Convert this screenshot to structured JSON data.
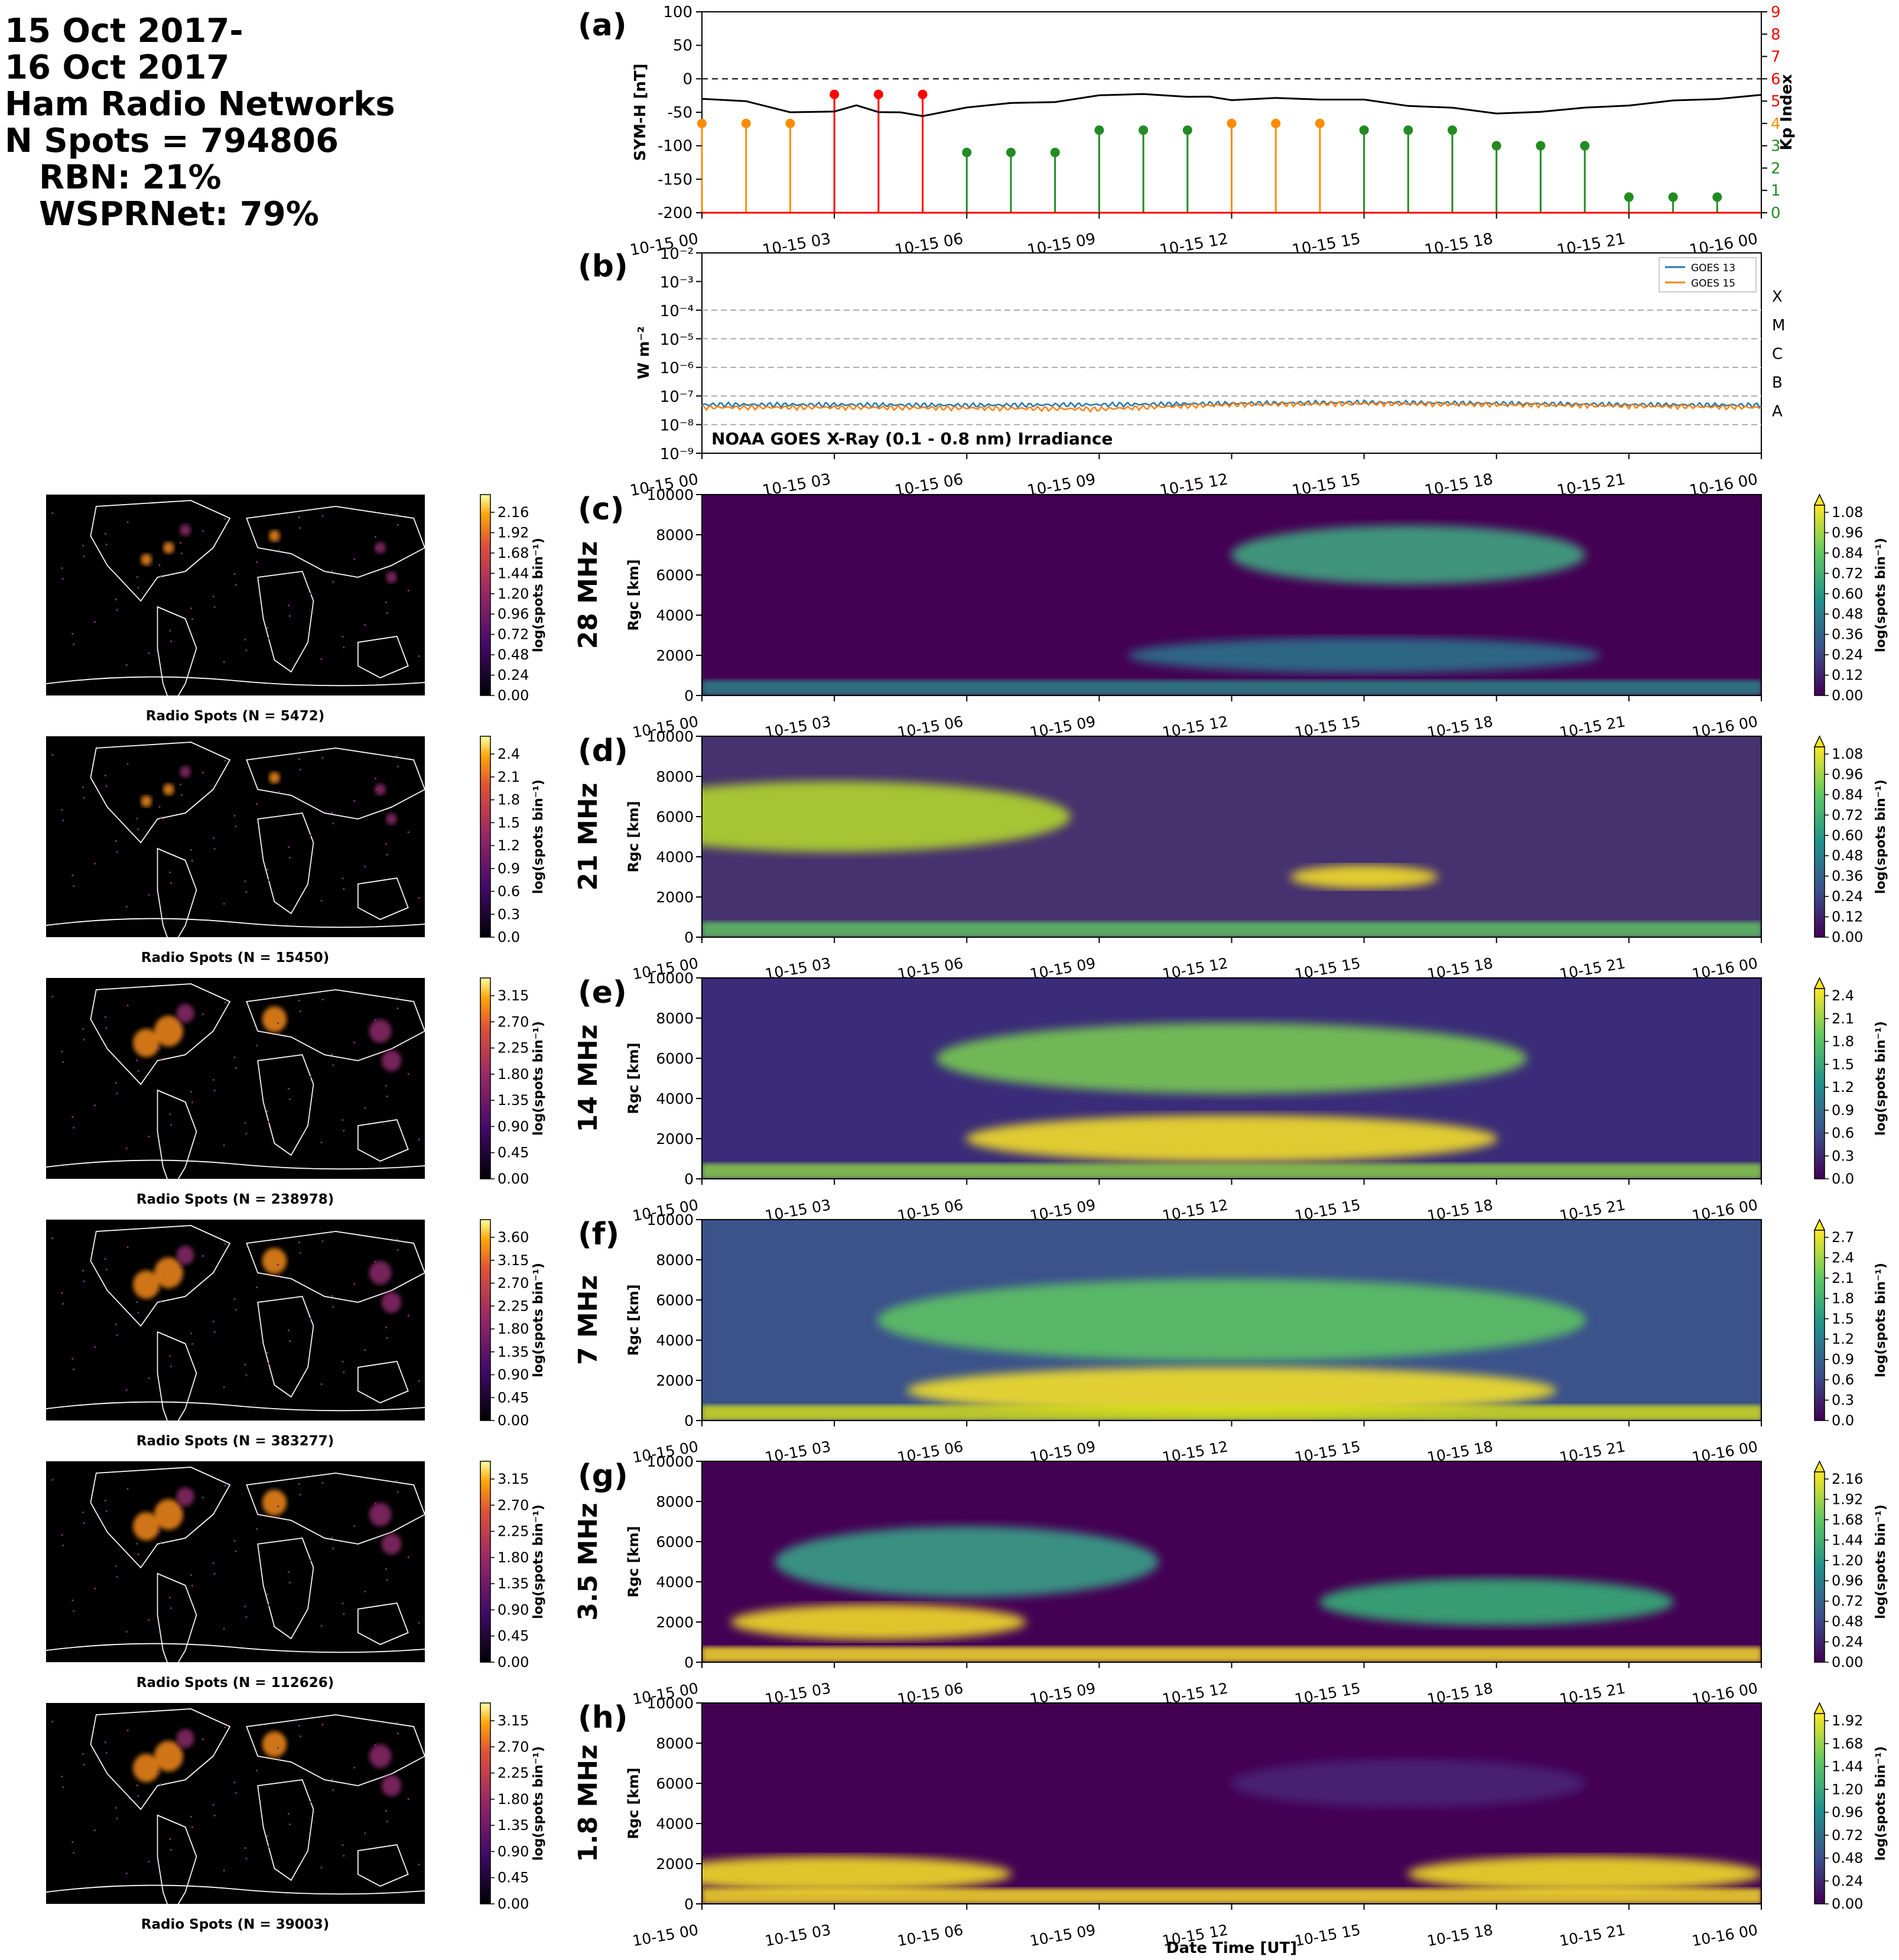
{
  "header": {
    "lines": [
      "15 Oct 2017-",
      "16 Oct 2017",
      "Ham Radio Networks",
      "N Spots = 794806"
    ],
    "networks": [
      "RBN: 21%",
      "WSPRNet: 79%"
    ]
  },
  "colors": {
    "symh_line": "#000000",
    "kp_quiet": "#228b22",
    "kp_active": "#ff8c00",
    "kp_storm": "#ff0000",
    "goes13": "#1f77b4",
    "goes15": "#ff7f0e",
    "map_background": "#000000",
    "coastline": "#ffffff"
  },
  "time_ticks": [
    "10-15 00",
    "10-15 03",
    "10-15 06",
    "10-15 09",
    "10-15 12",
    "10-15 15",
    "10-15 18",
    "10-15 21",
    "10-16 00"
  ],
  "panel_a": {
    "label": "(a)",
    "ylabel": "SYM-H [nT]",
    "y2label": "Kp Index",
    "yticks": [
      "100",
      "50",
      "0",
      "-50",
      "-100",
      "-150",
      "-200"
    ],
    "y2ticks": [
      "9",
      "8",
      "7",
      "6",
      "5",
      "4",
      "3",
      "2",
      "1",
      "0"
    ]
  },
  "panel_b": {
    "label": "(b)",
    "ylabel": "W m⁻²",
    "yticks": [
      "10⁻²",
      "10⁻³",
      "10⁻⁴",
      "10⁻⁵",
      "10⁻⁶",
      "10⁻⁷",
      "10⁻⁸",
      "10⁻⁹"
    ],
    "classes": [
      "X",
      "M",
      "C",
      "B",
      "A"
    ],
    "legend": [
      "GOES 13",
      "GOES 15"
    ],
    "annotation": "NOAA GOES X-Ray (0.1 - 0.8 nm) Irradiance"
  },
  "band_panels": [
    {
      "label": "(c)",
      "band": "28 MHz",
      "map_caption": "Radio Spots (N = 5472)",
      "map_ticks": [
        "2.16",
        "1.92",
        "1.68",
        "1.44",
        "1.20",
        "0.96",
        "0.72",
        "0.48",
        "0.24",
        "0.00"
      ],
      "rti_ticks": [
        "1.08",
        "0.96",
        "0.84",
        "0.72",
        "0.60",
        "0.48",
        "0.36",
        "0.24",
        "0.12",
        "0.00"
      ]
    },
    {
      "label": "(d)",
      "band": "21 MHz",
      "map_caption": "Radio Spots (N = 15450)",
      "map_ticks": [
        "2.4",
        "2.1",
        "1.8",
        "1.5",
        "1.2",
        "0.9",
        "0.6",
        "0.3",
        "0.0"
      ],
      "rti_ticks": [
        "1.08",
        "0.96",
        "0.84",
        "0.72",
        "0.60",
        "0.48",
        "0.36",
        "0.24",
        "0.12",
        "0.00"
      ]
    },
    {
      "label": "(e)",
      "band": "14 MHz",
      "map_caption": "Radio Spots (N = 238978)",
      "map_ticks": [
        "3.15",
        "2.70",
        "2.25",
        "1.80",
        "1.35",
        "0.90",
        "0.45",
        "0.00"
      ],
      "rti_ticks": [
        "2.4",
        "2.1",
        "1.8",
        "1.5",
        "1.2",
        "0.9",
        "0.6",
        "0.3",
        "0.0"
      ]
    },
    {
      "label": "(f)",
      "band": "7 MHz",
      "map_caption": "Radio Spots (N = 383277)",
      "map_ticks": [
        "3.60",
        "3.15",
        "2.70",
        "2.25",
        "1.80",
        "1.35",
        "0.90",
        "0.45",
        "0.00"
      ],
      "rti_ticks": [
        "2.7",
        "2.4",
        "2.1",
        "1.8",
        "1.5",
        "1.2",
        "0.9",
        "0.6",
        "0.3",
        "0.0"
      ]
    },
    {
      "label": "(g)",
      "band": "3.5 MHz",
      "map_caption": "Radio Spots (N = 112626)",
      "map_ticks": [
        "3.15",
        "2.70",
        "2.25",
        "1.80",
        "1.35",
        "0.90",
        "0.45",
        "0.00"
      ],
      "rti_ticks": [
        "2.16",
        "1.92",
        "1.68",
        "1.44",
        "1.20",
        "0.96",
        "0.72",
        "0.48",
        "0.24",
        "0.00"
      ]
    },
    {
      "label": "(h)",
      "band": "1.8 MHz",
      "map_caption": "Radio Spots (N = 39003)",
      "map_ticks": [
        "3.15",
        "2.70",
        "2.25",
        "1.80",
        "1.35",
        "0.90",
        "0.45",
        "0.00"
      ],
      "rti_ticks": [
        "1.92",
        "1.68",
        "1.44",
        "1.20",
        "0.96",
        "0.72",
        "0.48",
        "0.24",
        "0.00"
      ]
    }
  ],
  "rti_axis": {
    "ylabel": "Rgc [km]",
    "yticks": [
      "10000",
      "8000",
      "6000",
      "4000",
      "2000",
      "0"
    ],
    "cbar_label": "log(spots bin⁻¹)"
  },
  "xlabel": "Date Time [UT]",
  "chart_data": [
    {
      "type": "line",
      "title": "",
      "ylabel": "SYM-H [nT]",
      "ylim": [
        -200,
        100
      ],
      "x_hours": [
        0,
        1,
        2,
        3,
        3.5,
        4,
        4.5,
        5,
        6,
        7,
        8,
        9,
        10,
        11,
        11.5,
        12,
        13,
        14,
        15,
        16,
        17,
        18,
        19,
        20,
        21,
        22,
        23,
        24
      ],
      "symh": [
        -30,
        -35,
        -48,
        -50,
        -40,
        -48,
        -52,
        -55,
        -42,
        -38,
        -33,
        -25,
        -24,
        -25,
        -28,
        -32,
        -27,
        -33,
        -30,
        -40,
        -45,
        -50,
        -50,
        -44,
        -38,
        -34,
        -30,
        -24
      ],
      "kp_series": {
        "name": "Kp Index",
        "ylim": [
          0,
          9
        ],
        "x_hours": [
          0,
          1,
          2,
          3,
          4,
          5,
          6,
          7,
          8,
          9,
          10,
          11,
          12,
          13,
          14,
          15,
          16,
          17,
          18,
          19,
          20,
          21,
          22,
          23
        ],
        "values": [
          4.0,
          4.0,
          4.0,
          5.3,
          5.3,
          5.3,
          2.7,
          2.7,
          2.7,
          3.7,
          3.7,
          3.7,
          4.0,
          4.0,
          4.0,
          3.7,
          3.7,
          3.7,
          3.0,
          3.0,
          3.0,
          0.7,
          0.7,
          0.7
        ]
      }
    },
    {
      "type": "line",
      "title": "NOAA GOES X-Ray (0.1 - 0.8 nm) Irradiance",
      "ylabel": "W m⁻²",
      "yscale": "log",
      "ylim": [
        1e-09,
        0.01
      ],
      "x_hours": [
        0,
        3,
        6,
        9,
        12,
        15,
        18,
        21,
        24
      ],
      "series": [
        {
          "name": "GOES 13",
          "values": [
            5e-08,
            5e-08,
            4.8e-08,
            5e-08,
            5.5e-08,
            6e-08,
            5.5e-08,
            5e-08,
            4.8e-08
          ]
        },
        {
          "name": "GOES 15",
          "values": [
            4e-08,
            4e-08,
            3.8e-08,
            3.5e-08,
            5e-08,
            5.5e-08,
            5e-08,
            4.5e-08,
            4e-08
          ]
        }
      ]
    }
  ]
}
